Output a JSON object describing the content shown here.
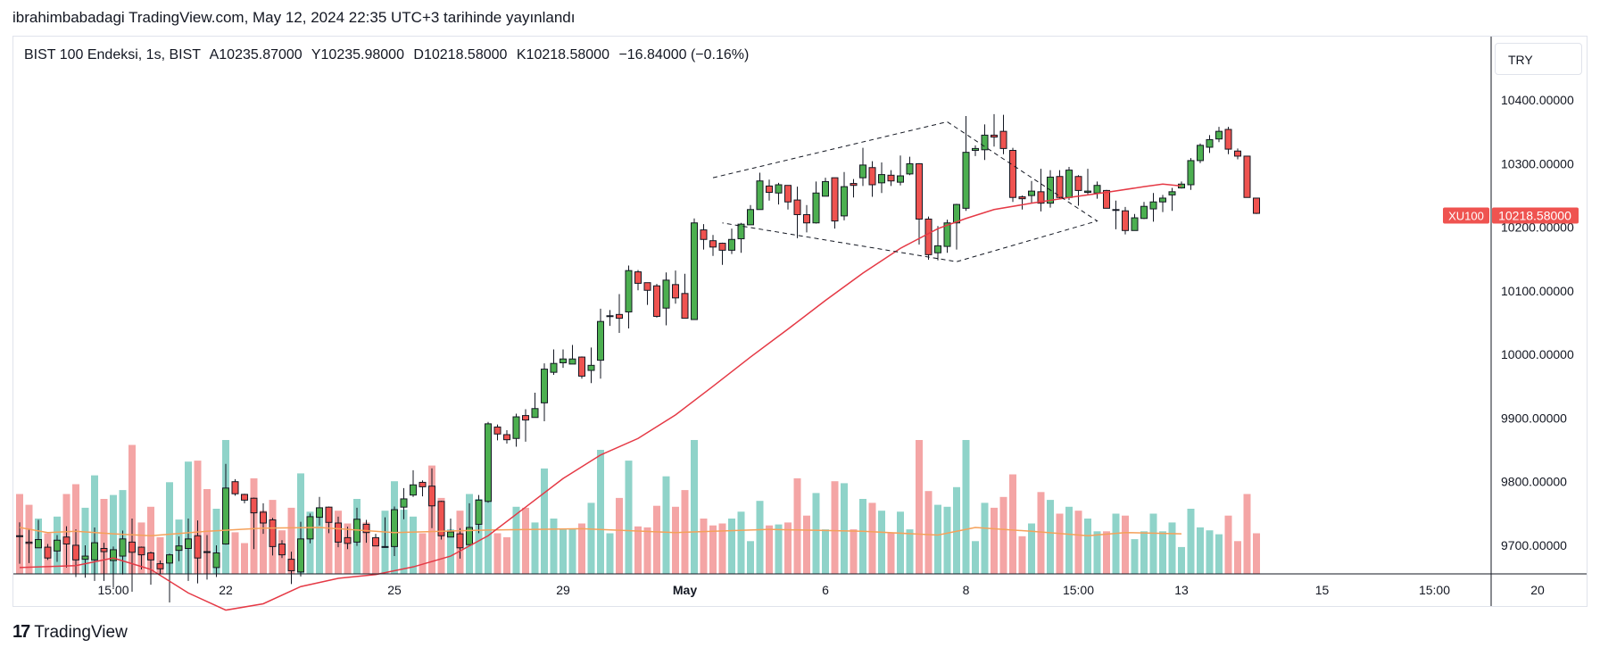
{
  "header": {
    "published_text": "ibrahimbabadagi TradingView.com, May 12, 2024 22:35 UTC+3 tarihinde yayınlandı"
  },
  "legend": {
    "symbol_text": "BIST 100 Endeksi, 1s, BIST",
    "open_label": "A",
    "open_value": "10235.87000",
    "high_label": "Y",
    "high_value": "10235.98000",
    "low_label": "D",
    "low_value": "10218.58000",
    "close_label": "K",
    "close_value": "10218.58000",
    "change_text": "−16.84000 (−0.16%)"
  },
  "currency_button": {
    "label": "TRY"
  },
  "footer": {
    "brand": "TradingView",
    "logo_glyph": "17"
  },
  "chart_data": {
    "type": "candlestick",
    "symbol_tag": "XU100",
    "last_price": 10218.58,
    "last_price_label": "10218.58000",
    "y_range": [
      9655,
      10500
    ],
    "y_ticks": [
      9700,
      9800,
      9900,
      10000,
      10100,
      10200,
      10300,
      10400
    ],
    "y_tick_labels": [
      "9700.00000",
      "9800.00000",
      "9900.00000",
      "10000.00000",
      "10100.00000",
      "10200.00000",
      "10300.00000",
      "10400.00000"
    ],
    "x_index_range": [
      0,
      165
    ],
    "x_ticks": [
      {
        "index": 10,
        "label": "15:00",
        "bold": false
      },
      {
        "index": 22,
        "label": "22",
        "bold": false
      },
      {
        "index": 40,
        "label": "25",
        "bold": false
      },
      {
        "index": 58,
        "label": "29",
        "bold": false
      },
      {
        "index": 71,
        "label": "May",
        "bold": true
      },
      {
        "index": 86,
        "label": "6",
        "bold": false
      },
      {
        "index": 101,
        "label": "8",
        "bold": false
      },
      {
        "index": 113,
        "label": "15:00",
        "bold": false
      },
      {
        "index": 124,
        "label": "13",
        "bold": false
      },
      {
        "index": 139,
        "label": "15",
        "bold": false
      },
      {
        "index": 151,
        "label": "15:00",
        "bold": false
      },
      {
        "index": 162,
        "label": "20",
        "bold": false
      }
    ],
    "colors": {
      "up": "#4caf50",
      "down": "#ef5350",
      "ma": "#e53945",
      "volume_ma": "#f5a15a",
      "pattern": "#131722",
      "vol_up": "#8fd3c9",
      "vol_down": "#f4a5a5"
    },
    "ma_path": [
      [
        0,
        9665
      ],
      [
        6,
        9668
      ],
      [
        10,
        9680
      ],
      [
        14,
        9662
      ],
      [
        18,
        9625
      ],
      [
        22,
        9598
      ],
      [
        26,
        9608
      ],
      [
        30,
        9635
      ],
      [
        34,
        9648
      ],
      [
        38,
        9654
      ],
      [
        42,
        9666
      ],
      [
        46,
        9683
      ],
      [
        50,
        9715
      ],
      [
        54,
        9760
      ],
      [
        58,
        9805
      ],
      [
        62,
        9842
      ],
      [
        66,
        9868
      ],
      [
        70,
        9905
      ],
      [
        74,
        9950
      ],
      [
        78,
        9996
      ],
      [
        82,
        10040
      ],
      [
        86,
        10085
      ],
      [
        90,
        10128
      ],
      [
        94,
        10167
      ],
      [
        98,
        10198
      ],
      [
        101,
        10214
      ],
      [
        104,
        10228
      ],
      [
        108,
        10238
      ],
      [
        112,
        10247
      ],
      [
        116,
        10255
      ],
      [
        120,
        10264
      ],
      [
        122,
        10268
      ],
      [
        124,
        10265
      ]
    ],
    "volume_ma_path": [
      [
        0,
        9728
      ],
      [
        3,
        9720
      ],
      [
        6,
        9722
      ],
      [
        10,
        9718
      ],
      [
        14,
        9715
      ],
      [
        20,
        9722
      ],
      [
        26,
        9727
      ],
      [
        32,
        9728
      ],
      [
        40,
        9720
      ],
      [
        50,
        9724
      ],
      [
        60,
        9726
      ],
      [
        70,
        9720
      ],
      [
        80,
        9725
      ],
      [
        90,
        9722
      ],
      [
        98,
        9716
      ],
      [
        102,
        9728
      ],
      [
        108,
        9722
      ],
      [
        114,
        9715
      ],
      [
        118,
        9720
      ],
      [
        124,
        9718
      ]
    ],
    "diamond_pattern": [
      [
        74,
        10278
      ],
      [
        99,
        10366
      ],
      [
        115,
        10210
      ],
      [
        100,
        10146
      ],
      [
        75,
        10207
      ]
    ],
    "candles": [
      [
        9715,
        9714,
        9736,
        9671
      ],
      [
        9705,
        9703,
        9726,
        9672
      ],
      [
        9696,
        9709,
        9740,
        9700
      ],
      [
        9697,
        9680,
        9702,
        9677
      ],
      [
        9691,
        9708,
        9716,
        9674
      ],
      [
        9713,
        9702,
        9730,
        9665
      ],
      [
        9700,
        9677,
        9725,
        9650
      ],
      [
        9678,
        9683,
        9700,
        9649
      ],
      [
        9677,
        9704,
        9728,
        9644
      ],
      [
        9695,
        9690,
        9704,
        9644
      ],
      [
        9676,
        9693,
        9698,
        9634
      ],
      [
        9683,
        9710,
        9723,
        9654
      ],
      [
        9705,
        9689,
        9742,
        9627
      ],
      [
        9697,
        9685,
        9698,
        9662
      ],
      [
        9688,
        9677,
        9690,
        9638
      ],
      [
        9671,
        9663,
        9676,
        9655
      ],
      [
        9672,
        9685,
        9687,
        9610
      ],
      [
        9692,
        9699,
        9714,
        9675
      ],
      [
        9695,
        9710,
        9742,
        9644
      ],
      [
        9715,
        9680,
        9739,
        9640
      ],
      [
        9690,
        9689,
        9716,
        9646
      ],
      [
        9665,
        9688,
        9700,
        9650
      ],
      [
        9702,
        9790,
        9828,
        9701
      ],
      [
        9800,
        9781,
        9804,
        9778
      ],
      [
        9780,
        9771,
        9781,
        9766
      ],
      [
        9774,
        9751,
        9775,
        9694
      ],
      [
        9752,
        9735,
        9766,
        9718
      ],
      [
        9740,
        9698,
        9743,
        9684
      ],
      [
        9702,
        9685,
        9708,
        9680
      ],
      [
        9678,
        9660,
        9690,
        9639
      ],
      [
        9658,
        9710,
        9737,
        9651
      ],
      [
        9710,
        9745,
        9750,
        9703
      ],
      [
        9744,
        9759,
        9776,
        9731
      ],
      [
        9760,
        9736,
        9761,
        9719
      ],
      [
        9735,
        9705,
        9745,
        9697
      ],
      [
        9712,
        9703,
        9729,
        9694
      ],
      [
        9705,
        9741,
        9759,
        9699
      ],
      [
        9733,
        9720,
        9740,
        9704
      ],
      [
        9712,
        9699,
        9718,
        9699
      ],
      [
        9697,
        9698,
        9744,
        9696
      ],
      [
        9698,
        9756,
        9761,
        9683
      ],
      [
        9760,
        9773,
        9790,
        9741
      ],
      [
        9779,
        9795,
        9818,
        9776
      ],
      [
        9799,
        9792,
        9802,
        9777
      ],
      [
        9793,
        9762,
        9821,
        9727
      ],
      [
        9769,
        9715,
        9770,
        9709
      ],
      [
        9713,
        9721,
        9742,
        9713
      ],
      [
        9718,
        9696,
        9727,
        9679
      ],
      [
        9701,
        9728,
        9766,
        9701
      ],
      [
        9733,
        9771,
        9779,
        9719
      ],
      [
        9769,
        9891,
        9894,
        9767
      ],
      [
        9886,
        9875,
        9890,
        9865
      ],
      [
        9874,
        9866,
        9881,
        9860
      ],
      [
        9868,
        9902,
        9907,
        9855
      ],
      [
        9904,
        9897,
        9914,
        9863
      ],
      [
        9901,
        9915,
        9940,
        9904
      ],
      [
        9924,
        9977,
        9986,
        9895
      ],
      [
        9972,
        9986,
        10008,
        9968
      ],
      [
        9987,
        9993,
        10008,
        9979
      ],
      [
        9985,
        9993,
        10015,
        9985
      ],
      [
        9996,
        9966,
        9997,
        9962
      ],
      [
        9975,
        9983,
        10011,
        9955
      ],
      [
        9991,
        10052,
        10072,
        9962
      ],
      [
        10060,
        10061,
        10070,
        10045
      ],
      [
        10063,
        10057,
        10095,
        10034
      ],
      [
        10067,
        10132,
        10140,
        10041
      ],
      [
        10130,
        10112,
        10133,
        10101
      ],
      [
        10113,
        10101,
        10109,
        10078
      ],
      [
        10108,
        10060,
        10111,
        10058
      ],
      [
        10073,
        10117,
        10129,
        10046
      ],
      [
        10110,
        10089,
        10132,
        10080
      ],
      [
        10096,
        10057,
        10127,
        10058
      ],
      [
        10055,
        10207,
        10214,
        10061
      ],
      [
        10196,
        10181,
        10205,
        10165
      ],
      [
        10179,
        10169,
        10188,
        10155
      ],
      [
        10175,
        10164,
        10176,
        10141
      ],
      [
        10164,
        10181,
        10198,
        10158
      ],
      [
        10182,
        10205,
        10207,
        10160
      ],
      [
        10204,
        10228,
        10235,
        10218
      ],
      [
        10228,
        10273,
        10286,
        10228
      ],
      [
        10265,
        10255,
        10275,
        10242
      ],
      [
        10254,
        10267,
        10270,
        10236
      ],
      [
        10266,
        10240,
        10264,
        10228
      ],
      [
        10243,
        10220,
        10264,
        10183
      ],
      [
        10220,
        10207,
        10235,
        10192
      ],
      [
        10207,
        10254,
        10272,
        10206
      ],
      [
        10249,
        10272,
        10278,
        10249
      ],
      [
        10278,
        10210,
        10276,
        10198
      ],
      [
        10218,
        10264,
        10287,
        10211
      ],
      [
        10269,
        10266,
        10276,
        10247
      ],
      [
        10278,
        10298,
        10325,
        10265
      ],
      [
        10294,
        10267,
        10304,
        10248
      ],
      [
        10270,
        10283,
        10302,
        10254
      ],
      [
        10282,
        10273,
        10290,
        10265
      ],
      [
        10271,
        10281,
        10313,
        10266
      ],
      [
        10284,
        10300,
        10311,
        10282
      ],
      [
        10300,
        10213,
        10301,
        10173
      ],
      [
        10213,
        10157,
        10217,
        10149
      ],
      [
        10160,
        10171,
        10202,
        10148
      ],
      [
        10170,
        10207,
        10212,
        10160
      ],
      [
        10207,
        10236,
        10237,
        10165
      ],
      [
        10230,
        10318,
        10375,
        10226
      ],
      [
        10321,
        10324,
        10329,
        10312
      ],
      [
        10322,
        10345,
        10362,
        10306
      ],
      [
        10345,
        10342,
        10378,
        10327
      ],
      [
        10351,
        10324,
        10377,
        10315
      ],
      [
        10321,
        10247,
        10325,
        10240
      ],
      [
        10248,
        10245,
        10250,
        10228
      ],
      [
        10250,
        10257,
        10273,
        10238
      ],
      [
        10256,
        10238,
        10292,
        10225
      ],
      [
        10238,
        10279,
        10290,
        10231
      ],
      [
        10280,
        10247,
        10290,
        10245
      ],
      [
        10247,
        10290,
        10295,
        10243
      ],
      [
        10280,
        10258,
        10282,
        10234
      ],
      [
        10255,
        10257,
        10292,
        10252
      ],
      [
        10254,
        10266,
        10272,
        10245
      ],
      [
        10258,
        10230,
        10259,
        10232
      ],
      [
        10227,
        10228,
        10242,
        10197
      ],
      [
        10226,
        10195,
        10232,
        10189
      ],
      [
        10195,
        10215,
        10221,
        10202
      ],
      [
        10214,
        10233,
        10240,
        10213
      ],
      [
        10229,
        10240,
        10254,
        10209
      ],
      [
        10240,
        10246,
        10251,
        10224
      ],
      [
        10251,
        10256,
        10262,
        10226
      ],
      [
        10262,
        10268,
        10272,
        10261
      ],
      [
        10267,
        10305,
        10309,
        10259
      ],
      [
        10305,
        10329,
        10332,
        10301
      ],
      [
        10326,
        10338,
        10345,
        10317
      ],
      [
        10339,
        10351,
        10358,
        10334
      ],
      [
        10354,
        10323,
        10358,
        10315
      ],
      [
        10320,
        10312,
        10324,
        10307
      ],
      [
        10312,
        10247,
        10312,
        10247
      ],
      [
        10246,
        10222,
        10246,
        10221
      ]
    ],
    "volume_bars": [
      [
        1,
        1
      ],
      [
        1,
        1
      ],
      [
        0,
        0
      ],
      [
        1,
        0
      ],
      [
        1,
        1
      ],
      [
        1,
        0
      ],
      [
        1,
        0
      ],
      [
        1,
        0
      ],
      [
        0,
        1
      ],
      [
        1,
        1
      ],
      [
        1,
        1
      ],
      [
        1,
        0
      ],
      [
        0,
        1
      ],
      [
        1,
        1
      ],
      [
        1,
        0
      ],
      [
        1,
        0
      ],
      [
        1,
        1
      ],
      [
        1,
        1
      ],
      [
        0,
        1
      ],
      [
        1,
        1
      ],
      [
        1,
        1
      ],
      [
        1,
        0
      ],
      [
        0,
        1
      ],
      [
        1,
        1
      ],
      [
        0,
        1
      ],
      [
        0,
        1
      ],
      [
        1,
        1
      ],
      [
        0,
        1
      ],
      [
        0,
        0
      ],
      [
        0,
        1
      ],
      [
        1,
        1
      ],
      [
        1,
        1
      ],
      [
        1,
        0
      ],
      [
        1,
        1
      ],
      [
        1,
        1
      ],
      [
        1,
        0
      ],
      [
        0,
        1
      ],
      [
        1,
        1
      ],
      [
        1,
        0
      ],
      [
        0,
        1
      ],
      [
        1,
        1
      ],
      [
        1,
        0
      ],
      [
        1,
        1
      ],
      [
        0,
        0
      ],
      [
        1,
        1
      ],
      [
        1,
        0
      ],
      [
        1,
        0
      ],
      [
        1,
        1
      ],
      [
        1,
        1
      ],
      [
        0,
        1
      ],
      [
        1,
        1
      ],
      [
        1,
        1
      ],
      [
        1,
        0
      ],
      [
        0,
        1
      ],
      [
        1,
        1
      ],
      [
        0,
        0
      ],
      [
        0,
        1
      ],
      [
        0,
        0
      ],
      [
        1,
        0
      ],
      [
        1,
        1
      ],
      [
        1,
        1
      ],
      [
        0,
        1
      ],
      [
        1,
        1
      ],
      [
        1,
        1
      ],
      [
        1,
        0
      ],
      [
        0,
        0
      ],
      [
        1,
        1
      ],
      [
        0,
        1
      ],
      [
        1,
        1
      ],
      [
        1,
        0
      ],
      [
        1,
        1
      ],
      [
        1,
        1
      ],
      [
        1,
        1
      ],
      [
        1,
        0
      ],
      [
        1,
        1
      ],
      [
        1,
        1
      ],
      [
        1,
        1
      ],
      [
        1,
        0
      ],
      [
        1,
        1
      ],
      [
        0,
        1
      ],
      [
        1,
        1
      ],
      [
        1,
        1
      ],
      [
        0,
        1
      ],
      [
        1,
        0
      ],
      [
        1,
        1
      ],
      [
        0,
        1
      ],
      [
        1,
        1
      ],
      [
        1,
        1
      ],
      [
        1,
        0
      ],
      [
        1,
        1
      ],
      [
        1,
        1
      ],
      [
        1,
        1
      ],
      [
        0,
        1
      ],
      [
        1,
        1
      ],
      [
        1,
        0
      ],
      [
        1,
        1
      ],
      [
        1,
        1
      ],
      [
        1,
        1
      ],
      [
        1,
        1
      ],
      [
        0,
        1
      ],
      [
        1,
        1
      ],
      [
        1,
        1
      ],
      [
        1,
        0
      ],
      [
        1,
        1
      ],
      [
        1,
        1
      ],
      [
        1,
        1
      ],
      [
        0,
        1
      ],
      [
        1,
        1
      ],
      [
        1,
        1
      ],
      [
        1,
        1
      ],
      [
        1,
        0
      ],
      [
        1,
        1
      ],
      [
        1,
        0
      ],
      [
        1,
        1
      ],
      [
        1,
        0
      ],
      [
        1,
        1
      ],
      [
        1,
        1
      ],
      [
        1,
        1
      ],
      [
        0,
        1
      ],
      [
        1,
        1
      ],
      [
        1,
        1
      ],
      [
        1,
        1
      ],
      [
        1,
        0
      ],
      [
        1,
        1
      ],
      [
        0,
        1
      ]
    ]
  }
}
